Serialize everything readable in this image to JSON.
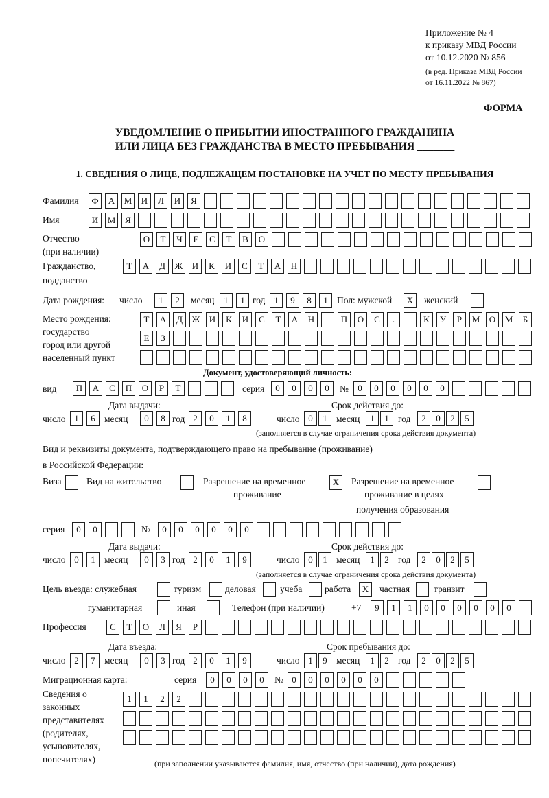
{
  "header": {
    "line1": "Приложение № 4",
    "line2": "к приказу МВД России",
    "line3": "от 10.12.2020 № 856",
    "line4": "(в ред. Приказа МВД России",
    "line5": "от 16.11.2022 № 867)",
    "forma": "ФОРМА"
  },
  "title": {
    "line1": "УВЕДОМЛЕНИЕ О ПРИБЫТИИ ИНОСТРАННОГО ГРАЖДАНИНА",
    "line2": "ИЛИ ЛИЦА БЕЗ ГРАЖДАНСТВА В МЕСТО ПРЕБЫВАНИЯ _______",
    "section1": "1. СВЕДЕНИЯ О ЛИЦЕ, ПОДЛЕЖАЩЕМ ПОСТАНОВКЕ НА УЧЕТ ПО МЕСТУ ПРЕБЫВАНИЯ"
  },
  "labels": {
    "surname": "Фамилия",
    "name": "Имя",
    "patronymic": "Отчество",
    "patronymic2": "(при наличии)",
    "citizenship": "Гражданство,",
    "citizenship2": "подданство",
    "birth_date": "Дата рождения:",
    "day": "число",
    "month": "месяц",
    "year": "год",
    "sex": "Пол: мужской",
    "female": "женский",
    "birthplace1": "Место рождения:",
    "birthplace2": "государство",
    "birthplace3": "город или другой",
    "birthplace4": "населенный пункт",
    "id_doc": "Документ, удостоверяющий личность:",
    "kind": "вид",
    "series": "серия",
    "number": "№",
    "issue_date": "Дата выдачи:",
    "valid_until": "Срок действия до:",
    "valid_note": "(заполняется в случае ограничения срока действия документа)",
    "right_doc1": "Вид и реквизиты документа, подтверждающего право на пребывание (проживание)",
    "right_doc2": "в Российской Федерации:",
    "visa": "Виза",
    "residence": "Вид на жительство",
    "temp1": "Разрешение на временное",
    "temp2": "проживание",
    "edu1": "Разрешение на временное",
    "edu2": "проживание в целях",
    "edu3": "получения образования",
    "purpose": "Цель въезда: служебная",
    "tourism": "туризм",
    "business": "деловая",
    "study": "учеба",
    "work": "работа",
    "private": "частная",
    "transit": "транзит",
    "humanitarian": "гуманитарная",
    "other": "иная",
    "phone": "Телефон (при наличии)",
    "phone_prefix": "+7",
    "profession": "Профессия",
    "entry_date": "Дата въезда:",
    "stay_until": "Срок пребывания до:",
    "migration_card": "Миграционная карта:",
    "rep1": "Сведения о",
    "rep2": "законных",
    "rep3": "представителях",
    "rep4": "(родителях,",
    "rep5": "усыновителях,",
    "rep6": "попечителях)",
    "rep_note": "(при заполнении указываются фамилия, имя, отчество (при наличии), дата рождения)"
  },
  "fields": {
    "surname": "ФАМИЛИЯ",
    "name": "ИМЯ",
    "patronymic": "ОТЧЕСТВО",
    "citizenship": "ТАДЖИКИСТАН",
    "birth_day": "12",
    "birth_month": "11",
    "birth_year": "1981",
    "sex_male": "X",
    "sex_female": "",
    "birthplace1": "ТАДЖИКИСТАН ПОС. КУРМОМБ",
    "birthplace2": "ЕЗ",
    "birthplace3": "",
    "doc_kind": "ПАСПОРТ",
    "doc_series": "0000",
    "doc_number": "000000",
    "doc_issue_day": "16",
    "doc_issue_month": "08",
    "doc_issue_year": "2018",
    "doc_valid_day": "01",
    "doc_valid_month": "11",
    "doc_valid_year": "2025",
    "visa": "",
    "residence": "",
    "temp_residence": "X",
    "edu_residence": "",
    "right_series": "00",
    "right_number": "000000",
    "right_issue_day": "01",
    "right_issue_month": "03",
    "right_issue_year": "2019",
    "right_valid_day": "01",
    "right_valid_month": "12",
    "right_valid_year": "2025",
    "p_service": "",
    "p_tourism": "",
    "p_business": "",
    "p_study": "",
    "p_work": "X",
    "p_private": "",
    "p_transit": "",
    "p_humanitarian": "",
    "p_other": "",
    "phone": "911000000",
    "profession": "СТОЛЯР",
    "entry_day": "27",
    "entry_month": "03",
    "entry_year": "2019",
    "stay_day": "19",
    "stay_month": "12",
    "stay_year": "2025",
    "mig_series": "0000",
    "mig_number": "000000",
    "rep1": "1122",
    "rep2": "",
    "rep3": ""
  }
}
